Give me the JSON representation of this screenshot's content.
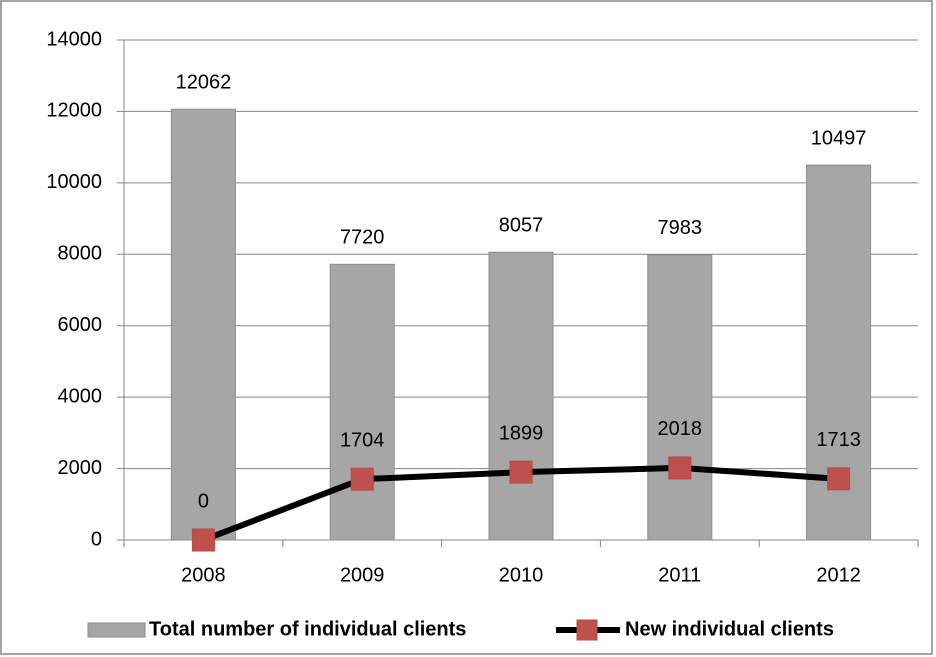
{
  "chart_data": {
    "type": "bar",
    "categories": [
      "2008",
      "2009",
      "2010",
      "2011",
      "2012"
    ],
    "series": [
      {
        "name": "Total number of individual clients",
        "type": "bar",
        "color": "#a6a6a6",
        "values": [
          12062,
          7720,
          8057,
          7983,
          10497
        ]
      },
      {
        "name": "New individual clients",
        "type": "line",
        "color": "#000000",
        "marker_color": "#c0504d",
        "values": [
          0,
          1704,
          1899,
          2018,
          1713
        ]
      }
    ],
    "ylim": [
      0,
      14000
    ],
    "yticks": [
      0,
      2000,
      4000,
      6000,
      8000,
      10000,
      12000,
      14000
    ],
    "grid": true,
    "data_labels": true,
    "legend": "bottom"
  }
}
